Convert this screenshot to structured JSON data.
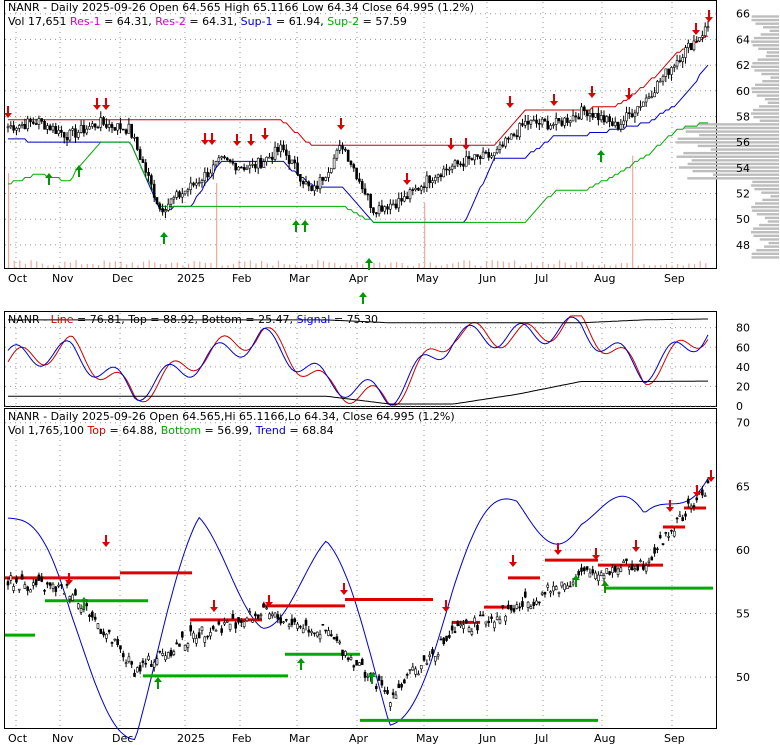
{
  "panels": {
    "price": {
      "header_l1": [
        "NANR - Daily 2025-09-26 Open 64.565  High 65.1166  Low 64.34  Close 64.995 (1.2%)"
      ],
      "header_l2": [
        {
          "text": "Vol 17,651 ",
          "color": "#000000"
        },
        {
          "text": "Res-1",
          "color": "#cc00cc"
        },
        {
          "text": " = 64.31, ",
          "color": "#000000"
        },
        {
          "text": "Res-2",
          "color": "#cc00cc"
        },
        {
          "text": " = 64.31, ",
          "color": "#000000"
        },
        {
          "text": "Sup-1",
          "color": "#0000cc"
        },
        {
          "text": " = 61.94, ",
          "color": "#000000"
        },
        {
          "text": "Sup-2",
          "color": "#00aa00"
        },
        {
          "text": " = 57.59",
          "color": "#000000"
        }
      ],
      "y_ticks": [
        "66",
        "64",
        "62",
        "60",
        "58",
        "56",
        "54",
        "52",
        "50",
        "48"
      ]
    },
    "osc": {
      "header": [
        {
          "text": "NANR - ",
          "color": "#000000"
        },
        {
          "text": "Line",
          "color": "#cc0000"
        },
        {
          "text": " = 76.81, ",
          "color": "#000000"
        },
        {
          "text": "Top",
          "color": "#000000"
        },
        {
          "text": " = 88.92, ",
          "color": "#000000"
        },
        {
          "text": "Bottom",
          "color": "#000000"
        },
        {
          "text": " = 25.47, ",
          "color": "#000000"
        },
        {
          "text": "Signal",
          "color": "#0000cc"
        },
        {
          "text": " = 75.30",
          "color": "#000000"
        }
      ],
      "y_ticks": [
        "80",
        "60",
        "40",
        "20",
        "0"
      ]
    },
    "lower": {
      "header_l1": [
        "NANR - Daily 2025-09-26 Open 64.565,Hi 65.1166,Lo 64.34, Close 64.995 (1.2%)"
      ],
      "header_l2": [
        {
          "text": "Vol 1,765,100 ",
          "color": "#000000"
        },
        {
          "text": "Top",
          "color": "#cc0000"
        },
        {
          "text": " = 64.88, ",
          "color": "#000000"
        },
        {
          "text": "Bottom",
          "color": "#00aa00"
        },
        {
          "text": " = 56.99, ",
          "color": "#000000"
        },
        {
          "text": "Trend",
          "color": "#0000cc"
        },
        {
          "text": " = 68.84",
          "color": "#000000"
        }
      ],
      "y_ticks": [
        "70",
        "65",
        "60",
        "55",
        "50"
      ]
    },
    "month_labels": [
      "Oct",
      "Nov",
      "Dec",
      "2025",
      "Feb",
      "Mar",
      "Apr",
      "May",
      "Jun",
      "Jul",
      "Aug",
      "Sep"
    ]
  },
  "chart_data": [
    {
      "type": "line",
      "title": "NANR - Daily 2025-09-26",
      "x": [
        "Oct",
        "Oct",
        "Nov",
        "Nov",
        "Dec",
        "Dec",
        "2025",
        "2025",
        "Feb",
        "Feb",
        "Mar",
        "Mar",
        "Apr",
        "Apr",
        "May",
        "May",
        "Jun",
        "Jun",
        "Jul",
        "Jul",
        "Aug",
        "Aug",
        "Sep",
        "Sep"
      ],
      "series": [
        {
          "name": "Close",
          "values": [
            57.2,
            57.6,
            56.5,
            57.5,
            57.0,
            50.8,
            52.5,
            54.5,
            54.0,
            55.5,
            52.0,
            55.8,
            50.8,
            51.5,
            53.5,
            54.5,
            55.0,
            57.5,
            57.4,
            58.5,
            57.2,
            59.5,
            62.5,
            64.995
          ]
        },
        {
          "name": "Res-1",
          "values": [
            57.7,
            57.7,
            57.7,
            57.7,
            57.7,
            57.7,
            57.7,
            57.7,
            57.7,
            57.7,
            55.7,
            55.7,
            55.7,
            55.7,
            55.7,
            55.7,
            55.7,
            58.6,
            58.6,
            58.6,
            58.8,
            60.5,
            63.0,
            64.31
          ]
        },
        {
          "name": "Sup-1",
          "values": [
            56.3,
            56.0,
            56.0,
            56.0,
            56.0,
            50.8,
            51.0,
            54.5,
            54.5,
            54.5,
            52.6,
            52.6,
            49.8,
            49.8,
            49.8,
            49.8,
            54.8,
            54.8,
            56.6,
            56.6,
            57.0,
            57.5,
            59.0,
            61.94
          ]
        },
        {
          "name": "Sup-2",
          "values": [
            52.8,
            53.5,
            53.0,
            56.0,
            56.0,
            51.0,
            51.0,
            51.0,
            51.0,
            51.0,
            51.0,
            51.0,
            49.8,
            49.8,
            49.8,
            49.8,
            49.8,
            49.8,
            52.3,
            52.3,
            53.5,
            55.0,
            57.0,
            57.59
          ]
        }
      ],
      "ylim": [
        46.2,
        66.6
      ]
    },
    {
      "type": "line",
      "x": [
        "Oct",
        "Nov",
        "Dec",
        "2025",
        "Feb",
        "Mar",
        "Apr",
        "May",
        "Jun",
        "Jul",
        "Aug",
        "Sep"
      ],
      "series": [
        {
          "name": "Line",
          "values": [
            45,
            60,
            10,
            50,
            75,
            20,
            5,
            75,
            70,
            85,
            30,
            76.81
          ]
        },
        {
          "name": "Signal",
          "values": [
            50,
            55,
            15,
            45,
            70,
            25,
            10,
            70,
            72,
            80,
            35,
            75.3
          ]
        },
        {
          "name": "Top",
          "values": [
            88,
            88,
            88,
            88,
            88,
            88,
            85,
            85,
            85,
            85,
            88,
            88.92
          ]
        },
        {
          "name": "Bottom",
          "values": [
            10,
            10,
            10,
            10,
            10,
            10,
            2,
            2,
            12,
            25,
            25,
            25.47
          ]
        }
      ],
      "ylim": [
        0,
        95
      ]
    },
    {
      "type": "line",
      "x": [
        "Oct",
        "Nov",
        "Dec",
        "2025",
        "Feb",
        "Mar",
        "Apr",
        "May",
        "Jun",
        "Jul",
        "Aug",
        "Sep"
      ],
      "series": [
        {
          "name": "Close",
          "values": [
            57.5,
            56.8,
            50.5,
            53.5,
            55.0,
            53.5,
            48.5,
            53.5,
            55.5,
            58.0,
            59.0,
            64.995
          ]
        },
        {
          "name": "Trend",
          "values": [
            62.5,
            53.5,
            47.5,
            59.5,
            57.0,
            58.0,
            48.0,
            56.5,
            63.0,
            64.0,
            60.0,
            68.84
          ]
        }
      ],
      "ylim": [
        46,
        71
      ]
    }
  ]
}
